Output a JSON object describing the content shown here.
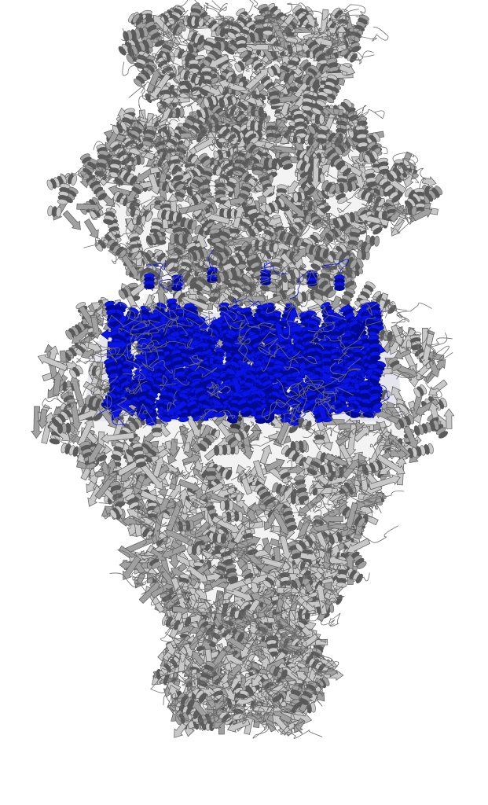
{
  "image": {
    "subject": "",
    "colors": {
      "background": "#ffffff",
      "structure_light": "#c8c8c8",
      "structure_mid": "#a0a0a0",
      "structure_dark": "#5a5a5a",
      "highlight": "#0a14e6",
      "highlight_dark": "#000a90"
    }
  }
}
